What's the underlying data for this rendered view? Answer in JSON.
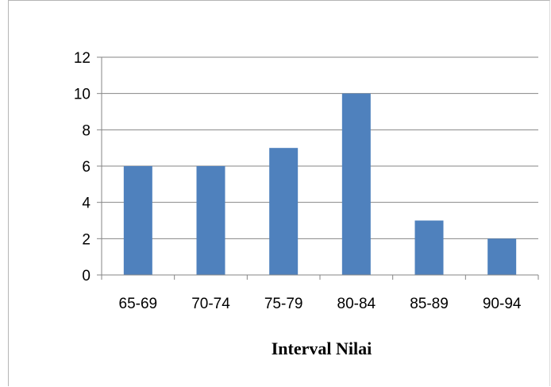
{
  "chart_data": {
    "type": "bar",
    "title": "",
    "xlabel": "Interval Nilai",
    "ylabel": "",
    "categories": [
      "65-69",
      "70-74",
      "75-79",
      "80-84",
      "85-89",
      "90-94"
    ],
    "values": [
      6,
      6,
      7,
      10,
      3,
      2
    ],
    "ylim": [
      0,
      12
    ],
    "yticks": [
      0,
      2,
      4,
      6,
      8,
      10,
      12
    ],
    "grid": true,
    "legend": "none",
    "colors": {
      "bar": "#4f81bd",
      "grid": "#868686",
      "axis": "#868686"
    }
  }
}
